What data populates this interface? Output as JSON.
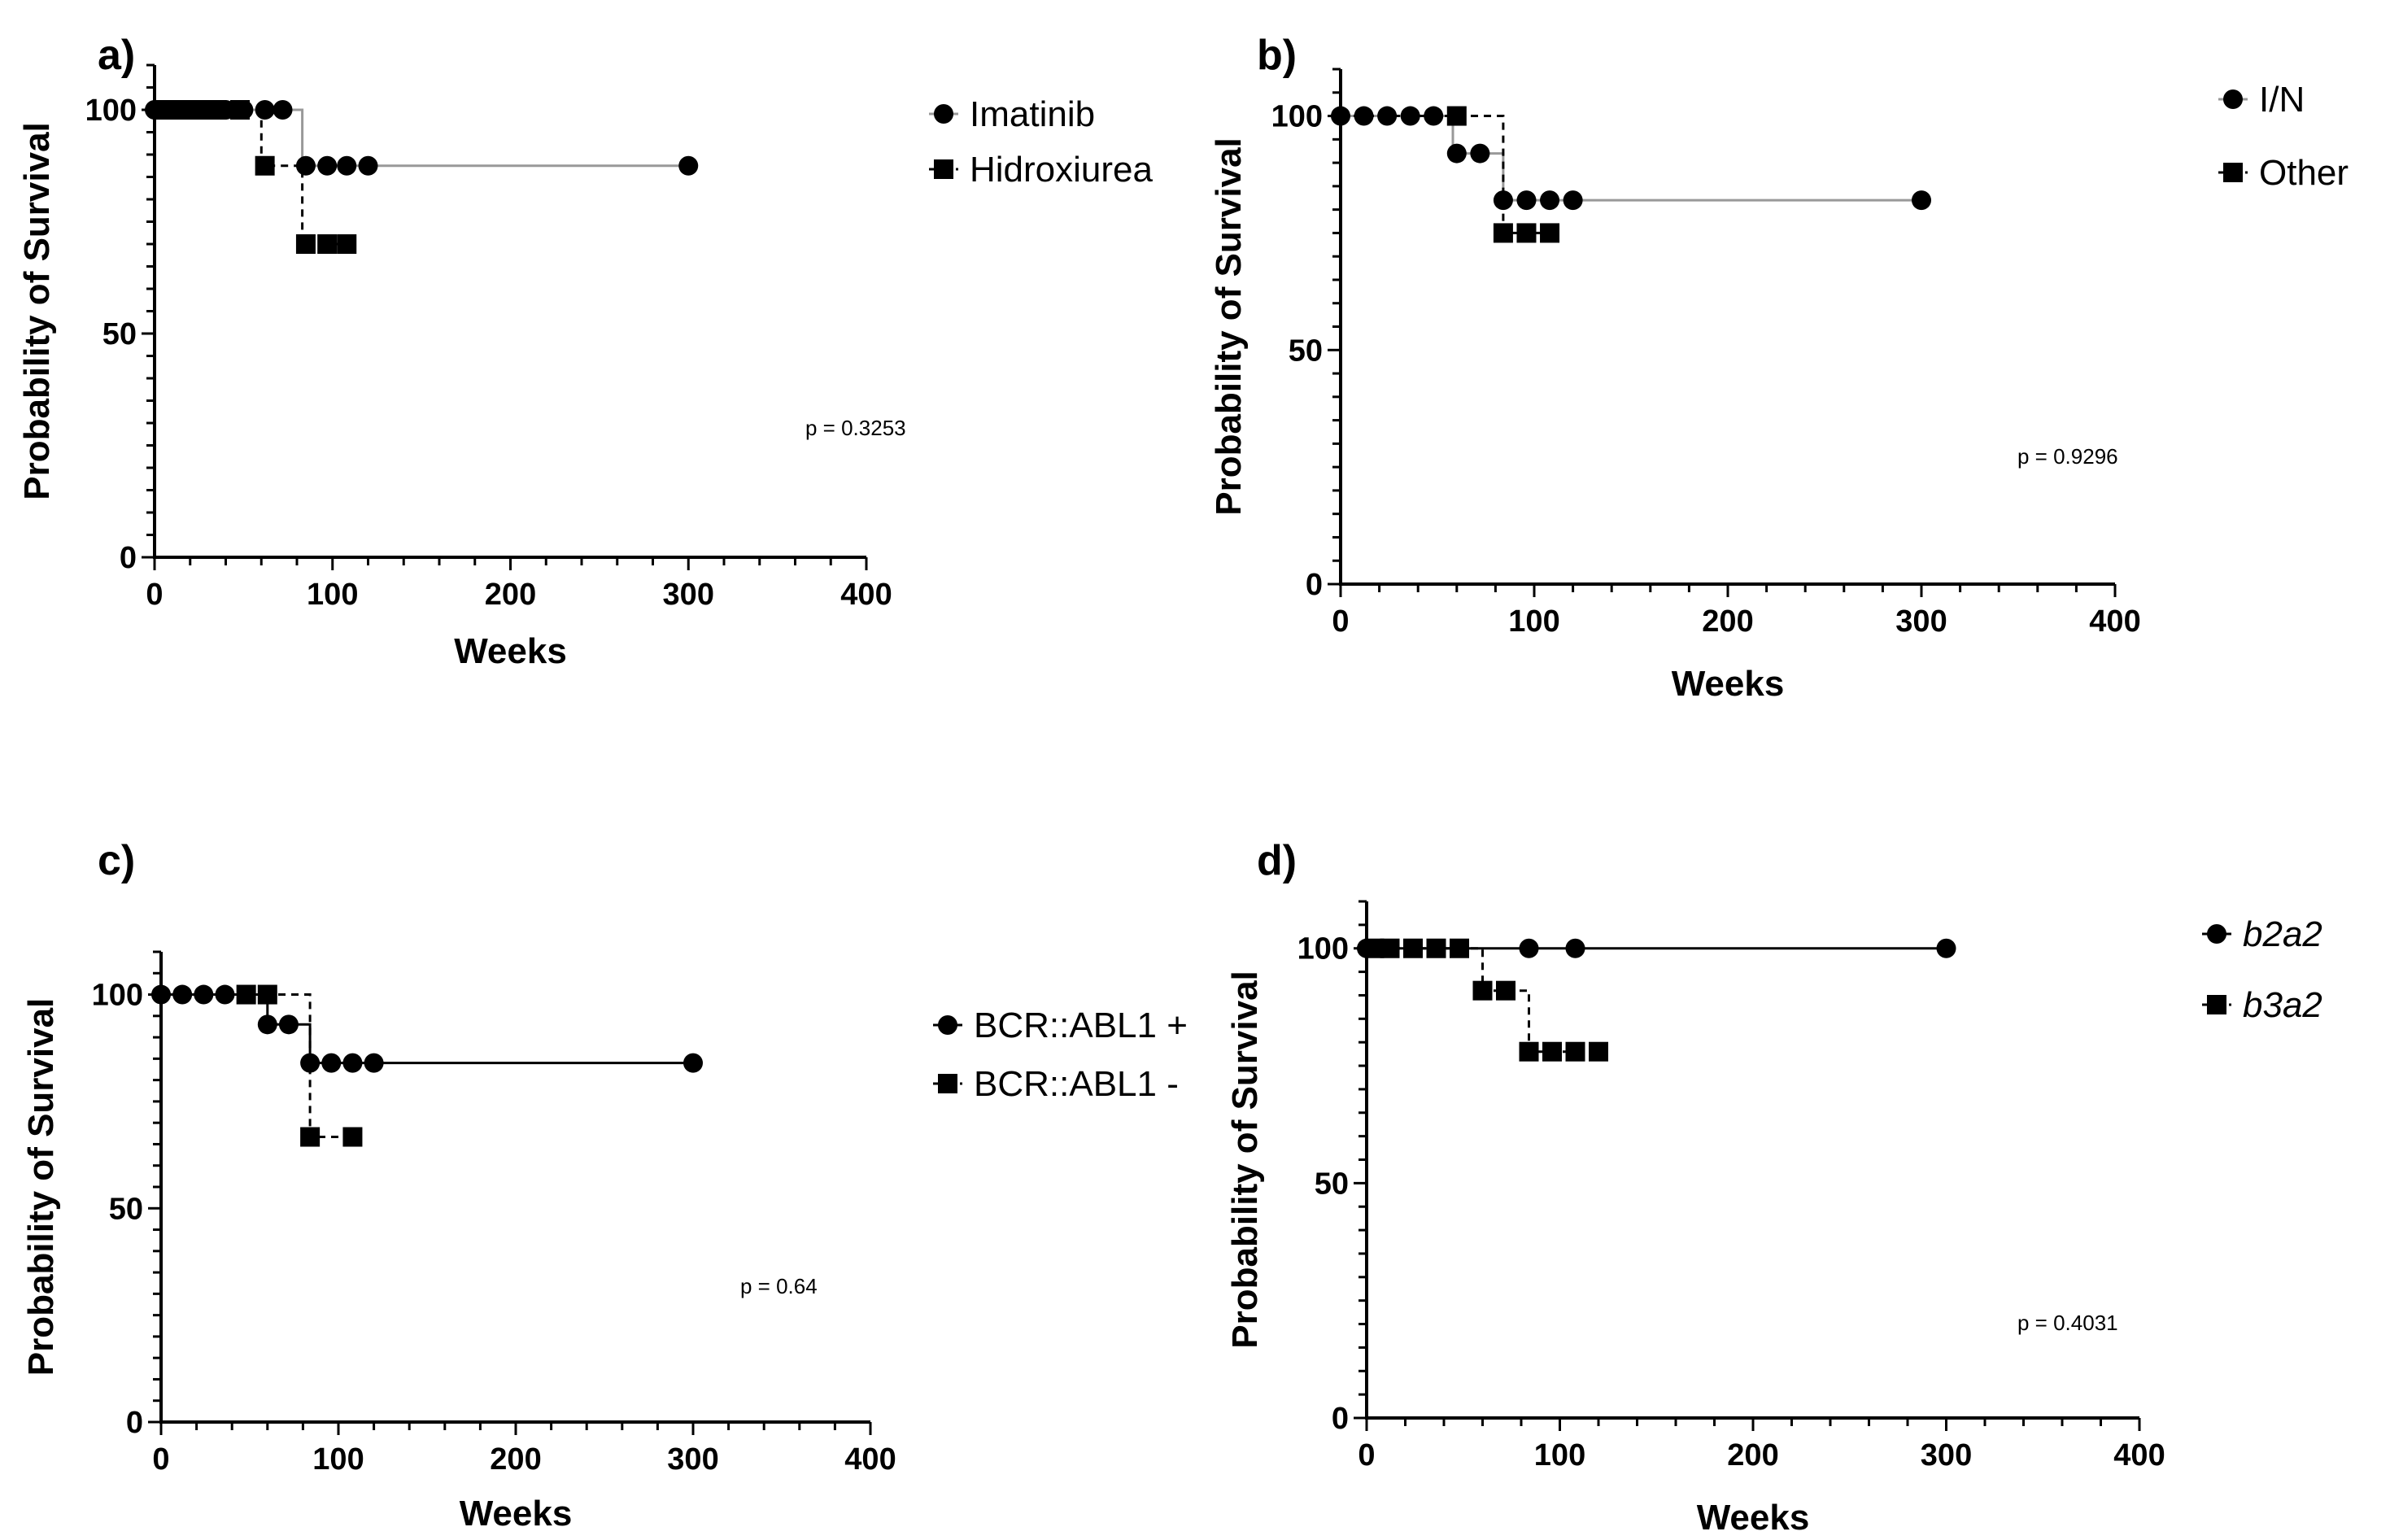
{
  "chart_data": [
    {
      "type": "line",
      "subtype": "kaplan-meier",
      "panel_label": "a)",
      "xlabel": "Weeks",
      "ylabel": "Probability of Survival",
      "xlim": [
        0,
        400
      ],
      "ylim": [
        0,
        110
      ],
      "xticks": [
        0,
        100,
        200,
        300,
        400
      ],
      "yticks": [
        0,
        50,
        100
      ],
      "p_value": "p = 0.3253",
      "legend_italic": false,
      "series": [
        {
          "name": "Imatinib",
          "marker": "circle",
          "line_color": "#999999",
          "dashed": false,
          "steps": [
            [
              0,
              100
            ],
            [
              83,
              100
            ],
            [
              83,
              87.5
            ],
            [
              300,
              87.5
            ]
          ],
          "markers": [
            [
              0,
              100
            ],
            [
              10,
              100
            ],
            [
              20,
              100
            ],
            [
              30,
              100
            ],
            [
              40,
              100
            ],
            [
              50,
              100
            ],
            [
              62,
              100
            ],
            [
              72,
              100
            ],
            [
              85,
              87.5
            ],
            [
              97,
              87.5
            ],
            [
              108,
              87.5
            ],
            [
              120,
              87.5
            ],
            [
              300,
              87.5
            ]
          ]
        },
        {
          "name": "Hidroxiurea",
          "marker": "square",
          "line_color": "#000000",
          "dashed": true,
          "steps": [
            [
              0,
              100
            ],
            [
              60,
              100
            ],
            [
              60,
              87.5
            ],
            [
              83,
              87.5
            ],
            [
              83,
              70
            ],
            [
              108,
              70
            ]
          ],
          "markers": [
            [
              5,
              100
            ],
            [
              15,
              100
            ],
            [
              25,
              100
            ],
            [
              35,
              100
            ],
            [
              48,
              100
            ],
            [
              62,
              87.5
            ],
            [
              85,
              70
            ],
            [
              97,
              70
            ],
            [
              108,
              70
            ]
          ]
        }
      ]
    },
    {
      "type": "line",
      "subtype": "kaplan-meier",
      "panel_label": "b)",
      "xlabel": "Weeks",
      "ylabel": "Probability of Survival",
      "xlim": [
        0,
        400
      ],
      "ylim": [
        0,
        110
      ],
      "xticks": [
        0,
        100,
        200,
        300,
        400
      ],
      "yticks": [
        0,
        50,
        100
      ],
      "p_value": "p = 0.9296",
      "legend_italic": false,
      "series": [
        {
          "name": "I/N",
          "marker": "circle",
          "line_color": "#999999",
          "dashed": false,
          "steps": [
            [
              0,
              100
            ],
            [
              58,
              100
            ],
            [
              58,
              92
            ],
            [
              84,
              92
            ],
            [
              84,
              82
            ],
            [
              300,
              82
            ]
          ],
          "markers": [
            [
              0,
              100
            ],
            [
              12,
              100
            ],
            [
              24,
              100
            ],
            [
              36,
              100
            ],
            [
              48,
              100
            ],
            [
              60,
              92
            ],
            [
              72,
              92
            ],
            [
              84,
              82
            ],
            [
              96,
              82
            ],
            [
              108,
              82
            ],
            [
              120,
              82
            ],
            [
              300,
              82
            ]
          ]
        },
        {
          "name": "Other",
          "marker": "square",
          "line_color": "#000000",
          "dashed": true,
          "steps": [
            [
              0,
              100
            ],
            [
              84,
              100
            ],
            [
              84,
              75
            ],
            [
              108,
              75
            ]
          ],
          "markers": [
            [
              60,
              100
            ],
            [
              84,
              75
            ],
            [
              96,
              75
            ],
            [
              108,
              75
            ]
          ]
        }
      ]
    },
    {
      "type": "line",
      "subtype": "kaplan-meier",
      "panel_label": "c)",
      "xlabel": "Weeks",
      "ylabel": "Probability of Survival",
      "xlim": [
        0,
        400
      ],
      "ylim": [
        0,
        110
      ],
      "xticks": [
        0,
        100,
        200,
        300,
        400
      ],
      "yticks": [
        0,
        50,
        100
      ],
      "p_value": "p = 0.64",
      "legend_italic": false,
      "series": [
        {
          "name": "BCR::ABL1 +",
          "marker": "circle",
          "line_color": "#000000",
          "dashed": false,
          "steps": [
            [
              0,
              100
            ],
            [
              60,
              100
            ],
            [
              60,
              93
            ],
            [
              84,
              93
            ],
            [
              84,
              84
            ],
            [
              300,
              84
            ]
          ],
          "markers": [
            [
              0,
              100
            ],
            [
              12,
              100
            ],
            [
              24,
              100
            ],
            [
              36,
              100
            ],
            [
              60,
              93
            ],
            [
              72,
              93
            ],
            [
              84,
              84
            ],
            [
              96,
              84
            ],
            [
              108,
              84
            ],
            [
              120,
              84
            ],
            [
              300,
              84
            ]
          ]
        },
        {
          "name": "BCR::ABL1 -",
          "marker": "square",
          "line_color": "#000000",
          "dashed": true,
          "steps": [
            [
              0,
              100
            ],
            [
              84,
              100
            ],
            [
              84,
              66.7
            ],
            [
              108,
              66.7
            ]
          ],
          "markers": [
            [
              48,
              100
            ],
            [
              60,
              100
            ],
            [
              84,
              66.7
            ],
            [
              108,
              66.7
            ]
          ]
        }
      ]
    },
    {
      "type": "line",
      "subtype": "kaplan-meier",
      "panel_label": "d)",
      "xlabel": "Weeks",
      "ylabel": "Probability of Survival",
      "xlim": [
        0,
        400
      ],
      "ylim": [
        0,
        110
      ],
      "xticks": [
        0,
        100,
        200,
        300,
        400
      ],
      "yticks": [
        0,
        50,
        100
      ],
      "p_value": "p = 0.4031",
      "legend_italic": true,
      "series": [
        {
          "name": "b2a2",
          "marker": "circle",
          "line_color": "#000000",
          "dashed": false,
          "steps": [
            [
              0,
              100
            ],
            [
              300,
              100
            ]
          ],
          "markers": [
            [
              0,
              100
            ],
            [
              84,
              100
            ],
            [
              108,
              100
            ],
            [
              300,
              100
            ]
          ]
        },
        {
          "name": "b3a2",
          "marker": "square",
          "line_color": "#000000",
          "dashed": true,
          "steps": [
            [
              0,
              100
            ],
            [
              60,
              100
            ],
            [
              60,
              91
            ],
            [
              84,
              91
            ],
            [
              84,
              78
            ],
            [
              120,
              78
            ]
          ],
          "markers": [
            [
              4,
              100
            ],
            [
              12,
              100
            ],
            [
              24,
              100
            ],
            [
              36,
              100
            ],
            [
              48,
              100
            ],
            [
              60,
              91
            ],
            [
              72,
              91
            ],
            [
              84,
              78
            ],
            [
              96,
              78
            ],
            [
              108,
              78
            ],
            [
              120,
              78
            ]
          ]
        }
      ]
    }
  ]
}
